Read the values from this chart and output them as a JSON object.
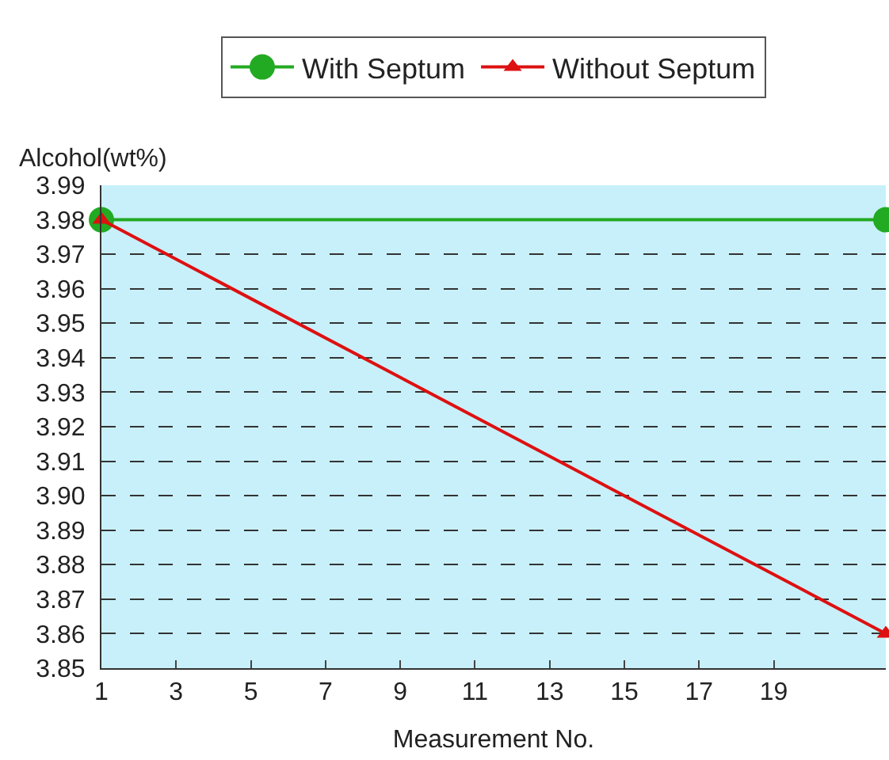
{
  "chart_data": {
    "type": "line",
    "xlabel": "Measurement No.",
    "ylabel": "Alcohol(wt%)",
    "x": [
      1,
      22
    ],
    "series": [
      {
        "name": "With Septum",
        "color": "#22aa22",
        "values": [
          3.98,
          3.98
        ],
        "marker": "circle"
      },
      {
        "name": "Without Septum",
        "color": "#dd1111",
        "values": [
          3.98,
          3.86
        ],
        "marker": "triangle"
      }
    ],
    "xlim": [
      1,
      22
    ],
    "xticks": [
      1,
      3,
      5,
      7,
      9,
      11,
      13,
      15,
      17,
      19
    ],
    "ylim": [
      3.85,
      3.99
    ],
    "yticks": [
      {
        "value": 3.85,
        "label": "3.85"
      },
      {
        "value": 3.86,
        "label": "3.86"
      },
      {
        "value": 3.87,
        "label": "3.87"
      },
      {
        "value": 3.88,
        "label": "3.88"
      },
      {
        "value": 3.89,
        "label": "3.89"
      },
      {
        "value": 3.9,
        "label": "3.90"
      },
      {
        "value": 3.91,
        "label": "3.91"
      },
      {
        "value": 3.92,
        "label": "3.92"
      },
      {
        "value": 3.93,
        "label": "3.93"
      },
      {
        "value": 3.94,
        "label": "3.94"
      },
      {
        "value": 3.95,
        "label": "3.95"
      },
      {
        "value": 3.96,
        "label": "3.96"
      },
      {
        "value": 3.97,
        "label": "3.97"
      },
      {
        "value": 3.98,
        "label": "3.98"
      },
      {
        "value": 3.99,
        "label": "3.99"
      }
    ],
    "grid": "y",
    "line_style": "solid",
    "legend": "top"
  }
}
